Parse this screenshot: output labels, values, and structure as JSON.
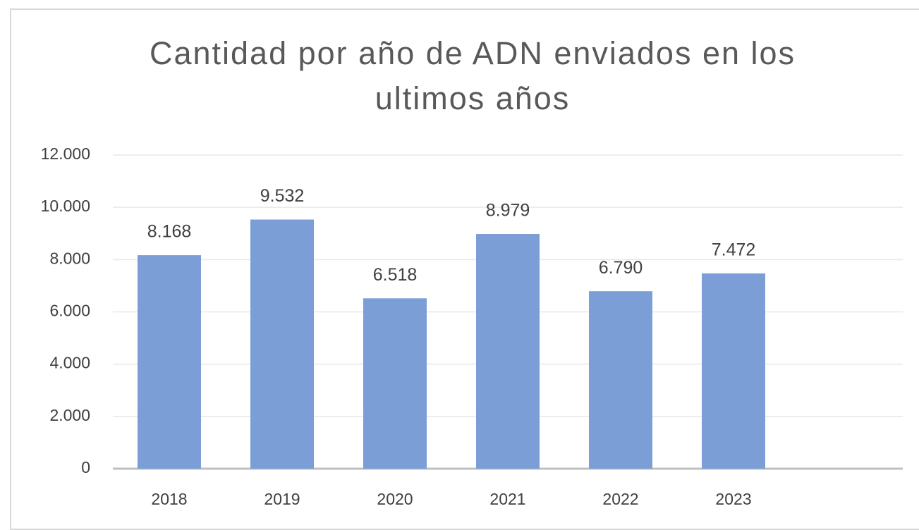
{
  "chart_data": {
    "type": "bar",
    "title": "Cantidad por año de ADN enviados en los ultimos años",
    "categories": [
      "2018",
      "2019",
      "2020",
      "2021",
      "2022",
      "2023",
      null
    ],
    "values": [
      8168,
      9532,
      6518,
      8979,
      6790,
      7472,
      null
    ],
    "value_labels": [
      "8.168",
      "9.532",
      "6.518",
      "8.979",
      "6.790",
      "7.472",
      null
    ],
    "color": "#7b9ed6",
    "ylim": [
      0,
      12000
    ],
    "yticks": [
      0,
      {
        "value": 2000,
        "label": "2.000"
      },
      {
        "value": 4000,
        "label": "4.000"
      },
      {
        "value": 6000,
        "label": "6.000"
      },
      {
        "value": 8000,
        "label": "8.000"
      },
      {
        "value": 10000,
        "label": "10.000"
      },
      {
        "value": 12000,
        "label": "12.000"
      }
    ],
    "grid": true
  }
}
